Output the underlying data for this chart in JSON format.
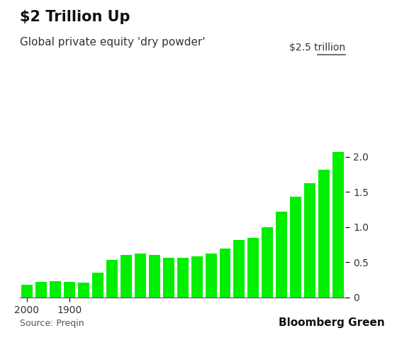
{
  "title": "$2 Trillion Up",
  "subtitle": "Global private equity 'dry powder'",
  "source": "Source: Preqin",
  "branding": "Bloomberg Green",
  "ylabel_annotation": "$2.5 trillion",
  "bar_color": "#00ee00",
  "values": [
    0.18,
    0.22,
    0.23,
    0.22,
    0.21,
    0.35,
    0.53,
    0.6,
    0.62,
    0.6,
    0.56,
    0.56,
    0.58,
    0.63,
    0.7,
    0.82,
    0.85,
    1.0,
    1.22,
    1.43,
    1.62,
    1.82,
    2.07
  ],
  "xtick_positions": [
    0,
    3
  ],
  "xtick_labels": [
    "2000",
    "1900"
  ],
  "ylim": [
    0,
    2.5
  ],
  "yticks": [
    0,
    0.5,
    1.0,
    1.5,
    2.0
  ],
  "ytick_labels": [
    "0",
    "0.5",
    "1.0",
    "1.5",
    "2.0"
  ],
  "background_color": "#ffffff",
  "title_fontsize": 15,
  "subtitle_fontsize": 11,
  "tick_fontsize": 10,
  "source_fontsize": 9,
  "brand_fontsize": 11,
  "annotation_fontsize": 10
}
